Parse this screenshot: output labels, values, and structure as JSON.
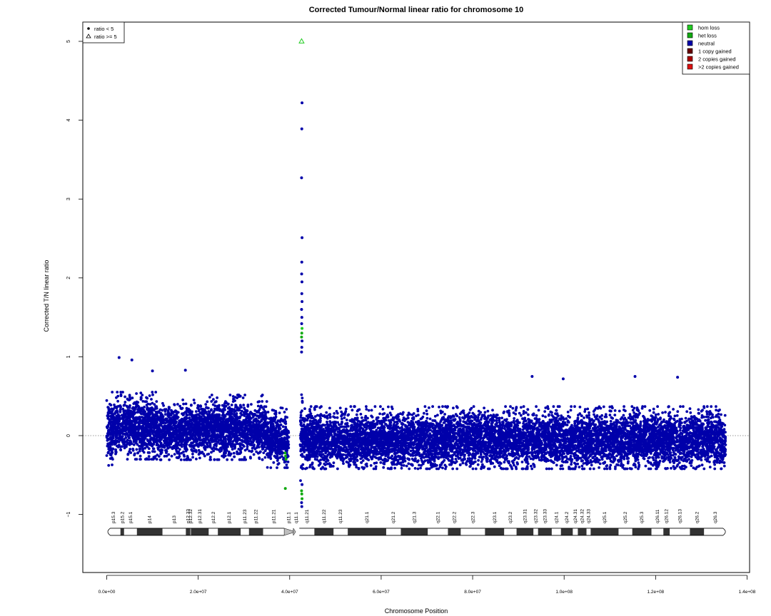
{
  "chart_data": {
    "type": "scatter",
    "title": "Corrected Tumour/Normal linear ratio for chromosome  10",
    "xlabel": "Chromosome Position",
    "ylabel": "Corrected T/N linear ratio",
    "xlim": [
      0,
      140000000
    ],
    "ylim": [
      -1.9,
      5.45
    ],
    "x_ticks": [
      0,
      20000000,
      40000000,
      60000000,
      80000000,
      100000000,
      120000000,
      140000000
    ],
    "x_tick_labels": [
      "0.0e+00",
      "2.0e+07",
      "4.0e+07",
      "6.0e+07",
      "8.0e+07",
      "1.0e+08",
      "1.2e+08",
      "1.4e+08"
    ],
    "y_ticks": [
      -1,
      0,
      1,
      2,
      3,
      4,
      5
    ],
    "y_tick_labels": [
      "−1",
      "0",
      "1",
      "2",
      "3",
      "4",
      "5"
    ],
    "reference_line_y": 0,
    "shape_legend": {
      "position": "top-left",
      "entries": [
        {
          "label": "ratio < 5",
          "symbol": "filled-circle"
        },
        {
          "label": "ratio >= 5",
          "symbol": "open-triangle"
        }
      ]
    },
    "state_legend": {
      "position": "top-right",
      "entries": [
        {
          "label": "hom loss",
          "color": "#22cc22"
        },
        {
          "label": "het loss",
          "color": "#11aa11"
        },
        {
          "label": "neutral",
          "color": "#0000aa"
        },
        {
          "label": "1 copy gained",
          "color": "#660000"
        },
        {
          "label": "2 copies gained",
          "color": "#aa0000"
        },
        {
          "label": ">2 copies gained",
          "color": "#dd1111"
        }
      ]
    },
    "band_values": [
      {
        "x_range": [
          0,
          1200000
        ],
        "mean": 0.05,
        "spread": 0.3
      },
      {
        "x_range": [
          1200000,
          11500000
        ],
        "mean": 0.1,
        "spread": 0.28
      },
      {
        "x_range": [
          11500000,
          20000000
        ],
        "mean": 0.05,
        "spread": 0.25
      },
      {
        "x_range": [
          20000000,
          35000000
        ],
        "mean": 0.08,
        "spread": 0.27
      },
      {
        "x_range": [
          35000000,
          39800000
        ],
        "mean": -0.05,
        "spread": 0.25
      },
      {
        "x_range": [
          42300000,
          42800000
        ],
        "mean": 0.0,
        "spread": 0.4
      },
      {
        "x_range": [
          42800000,
          135300000
        ],
        "mean": -0.05,
        "spread": 0.26
      }
    ],
    "outliers": [
      {
        "x": 42600000,
        "y": 5.0,
        "state": "hom loss",
        "shape": "open-triangle"
      },
      {
        "x": 42700000,
        "y": 4.22,
        "state": "neutral"
      },
      {
        "x": 42650000,
        "y": 3.89,
        "state": "neutral"
      },
      {
        "x": 42600000,
        "y": 3.27,
        "state": "neutral"
      },
      {
        "x": 42700000,
        "y": 2.51,
        "state": "neutral"
      },
      {
        "x": 42650000,
        "y": 2.2,
        "state": "neutral"
      },
      {
        "x": 42620000,
        "y": 2.05,
        "state": "neutral"
      },
      {
        "x": 42680000,
        "y": 1.95,
        "state": "neutral"
      },
      {
        "x": 42650000,
        "y": 1.8,
        "state": "neutral"
      },
      {
        "x": 42700000,
        "y": 1.7,
        "state": "neutral"
      },
      {
        "x": 42600000,
        "y": 1.6,
        "state": "neutral"
      },
      {
        "x": 42660000,
        "y": 1.5,
        "state": "neutral"
      },
      {
        "x": 42620000,
        "y": 1.42,
        "state": "neutral"
      },
      {
        "x": 42700000,
        "y": 1.36,
        "state": "hom loss"
      },
      {
        "x": 42650000,
        "y": 1.3,
        "state": "het loss"
      },
      {
        "x": 42600000,
        "y": 1.25,
        "state": "het loss"
      },
      {
        "x": 42700000,
        "y": 1.2,
        "state": "neutral"
      },
      {
        "x": 42650000,
        "y": 1.12,
        "state": "neutral"
      },
      {
        "x": 42600000,
        "y": 1.06,
        "state": "neutral"
      },
      {
        "x": 2700000,
        "y": 0.99,
        "state": "neutral"
      },
      {
        "x": 5500000,
        "y": 0.96,
        "state": "neutral"
      },
      {
        "x": 10000000,
        "y": 0.82,
        "state": "neutral"
      },
      {
        "x": 17200000,
        "y": 0.83,
        "state": "neutral"
      },
      {
        "x": 93000000,
        "y": 0.75,
        "state": "neutral"
      },
      {
        "x": 99800000,
        "y": 0.72,
        "state": "neutral"
      },
      {
        "x": 115500000,
        "y": 0.75,
        "state": "neutral"
      },
      {
        "x": 124800000,
        "y": 0.74,
        "state": "neutral"
      },
      {
        "x": 39000000,
        "y": -0.22,
        "state": "het loss"
      },
      {
        "x": 39100000,
        "y": -0.26,
        "state": "het loss"
      },
      {
        "x": 39200000,
        "y": -0.3,
        "state": "het loss"
      },
      {
        "x": 39050000,
        "y": -0.67,
        "state": "het loss"
      },
      {
        "x": 42600000,
        "y": -0.7,
        "state": "het loss"
      },
      {
        "x": 42650000,
        "y": -0.74,
        "state": "het loss"
      },
      {
        "x": 42700000,
        "y": -0.8,
        "state": "het loss"
      },
      {
        "x": 42600000,
        "y": -0.85,
        "state": "neutral"
      },
      {
        "x": 42650000,
        "y": -0.9,
        "state": "neutral"
      },
      {
        "x": 42700000,
        "y": -0.62,
        "state": "neutral"
      }
    ],
    "ideogram": {
      "y": -1.22,
      "centromere_x": 41300000,
      "bands": [
        {
          "name": "p15.3",
          "start": 0,
          "end": 3000000,
          "stain": "gneg"
        },
        {
          "name": "p15.2",
          "start": 3000000,
          "end": 3800000,
          "stain": "gpos"
        },
        {
          "name": "p15.1",
          "start": 3800000,
          "end": 6600000,
          "stain": "gneg"
        },
        {
          "name": "p14",
          "start": 6600000,
          "end": 12200000,
          "stain": "gpos"
        },
        {
          "name": "p13",
          "start": 12200000,
          "end": 17300000,
          "stain": "gneg"
        },
        {
          "name": "p12.33",
          "start": 17300000,
          "end": 18300000,
          "stain": "gpos"
        },
        {
          "name": "p12.32",
          "start": 18300000,
          "end": 18400000,
          "stain": "gneg"
        },
        {
          "name": "p12.31",
          "start": 18400000,
          "end": 22300000,
          "stain": "gpos"
        },
        {
          "name": "p12.2",
          "start": 22300000,
          "end": 24300000,
          "stain": "gneg"
        },
        {
          "name": "p12.1",
          "start": 24300000,
          "end": 29300000,
          "stain": "gpos"
        },
        {
          "name": "p11.23",
          "start": 29300000,
          "end": 31100000,
          "stain": "gneg"
        },
        {
          "name": "p11.22",
          "start": 31100000,
          "end": 34200000,
          "stain": "gpos"
        },
        {
          "name": "p11.21",
          "start": 34200000,
          "end": 38800000,
          "stain": "gneg"
        },
        {
          "name": "p11.1",
          "start": 38800000,
          "end": 40800000,
          "stain": "acen"
        },
        {
          "name": "q11.1",
          "start": 40800000,
          "end": 42100000,
          "stain": "acen"
        },
        {
          "name": "q11.21",
          "start": 42100000,
          "end": 45400000,
          "stain": "gneg"
        },
        {
          "name": "q11.22",
          "start": 45400000,
          "end": 49600000,
          "stain": "gpos"
        },
        {
          "name": "q11.23",
          "start": 49600000,
          "end": 52700000,
          "stain": "gneg"
        },
        {
          "name": "q21.1",
          "start": 52700000,
          "end": 61100000,
          "stain": "gpos"
        },
        {
          "name": "q21.2",
          "start": 61100000,
          "end": 64300000,
          "stain": "gneg"
        },
        {
          "name": "q21.3",
          "start": 64300000,
          "end": 70200000,
          "stain": "gpos"
        },
        {
          "name": "q22.1",
          "start": 70200000,
          "end": 74600000,
          "stain": "gneg"
        },
        {
          "name": "q22.2",
          "start": 74600000,
          "end": 77400000,
          "stain": "gpos"
        },
        {
          "name": "q22.3",
          "start": 77400000,
          "end": 82700000,
          "stain": "gneg"
        },
        {
          "name": "q23.1",
          "start": 82700000,
          "end": 86900000,
          "stain": "gpos"
        },
        {
          "name": "q23.2",
          "start": 86900000,
          "end": 89600000,
          "stain": "gneg"
        },
        {
          "name": "q23.31",
          "start": 89600000,
          "end": 93300000,
          "stain": "gpos"
        },
        {
          "name": "q23.32",
          "start": 93300000,
          "end": 94300000,
          "stain": "gneg"
        },
        {
          "name": "q23.33",
          "start": 94300000,
          "end": 97300000,
          "stain": "gpos"
        },
        {
          "name": "q24.1",
          "start": 97300000,
          "end": 99300000,
          "stain": "gneg"
        },
        {
          "name": "q24.2",
          "start": 99300000,
          "end": 101900000,
          "stain": "gpos"
        },
        {
          "name": "q24.31",
          "start": 101900000,
          "end": 103000000,
          "stain": "gneg"
        },
        {
          "name": "q24.32",
          "start": 103000000,
          "end": 104900000,
          "stain": "gpos"
        },
        {
          "name": "q24.33",
          "start": 104900000,
          "end": 105800000,
          "stain": "gneg"
        },
        {
          "name": "q25.1",
          "start": 105800000,
          "end": 111900000,
          "stain": "gpos"
        },
        {
          "name": "q25.2",
          "start": 111900000,
          "end": 114900000,
          "stain": "gneg"
        },
        {
          "name": "q25.3",
          "start": 114900000,
          "end": 119100000,
          "stain": "gpos"
        },
        {
          "name": "q26.11",
          "start": 119100000,
          "end": 121700000,
          "stain": "gneg"
        },
        {
          "name": "q26.12",
          "start": 121700000,
          "end": 123100000,
          "stain": "gpos"
        },
        {
          "name": "q26.13",
          "start": 123100000,
          "end": 127500000,
          "stain": "gneg"
        },
        {
          "name": "q26.2",
          "start": 127500000,
          "end": 130600000,
          "stain": "gpos"
        },
        {
          "name": "q26.3",
          "start": 130600000,
          "end": 135500000,
          "stain": "gneg"
        }
      ]
    }
  }
}
